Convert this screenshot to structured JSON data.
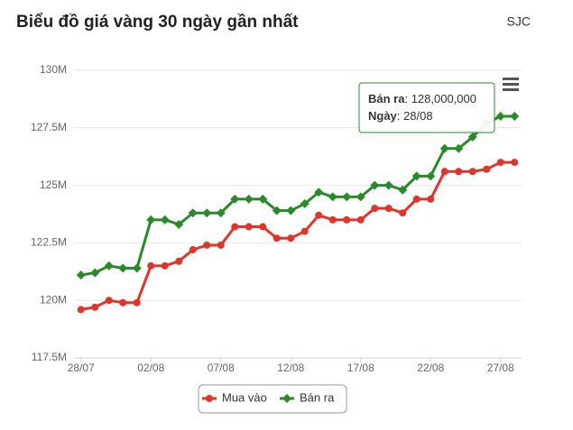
{
  "chart_data": {
    "type": "line",
    "title": "Biểu đồ giá vàng 30 ngày gần nhất",
    "source": "SJC",
    "categories": [
      "28/07",
      null,
      null,
      null,
      null,
      "02/08",
      null,
      null,
      null,
      null,
      "07/08",
      null,
      null,
      null,
      null,
      "12/08",
      null,
      null,
      null,
      null,
      "17/08",
      null,
      null,
      null,
      null,
      "22/08",
      null,
      null,
      null,
      null,
      "27/08",
      null
    ],
    "series": [
      {
        "name": "Mua vào",
        "color": "#e0352b",
        "values": [
          119600000,
          119700000,
          120000000,
          119900000,
          119900000,
          121500000,
          121500000,
          121700000,
          122200000,
          122400000,
          122400000,
          123200000,
          123200000,
          123200000,
          122700000,
          122700000,
          123000000,
          123700000,
          123500000,
          123500000,
          123500000,
          124000000,
          124000000,
          123800000,
          124400000,
          124400000,
          125600000,
          125600000,
          125600000,
          125700000,
          126000000,
          126000000
        ]
      },
      {
        "name": "Bán ra",
        "color": "#2a8a2a",
        "values": [
          121100000,
          121200000,
          121500000,
          121400000,
          121400000,
          123500000,
          123500000,
          123300000,
          123800000,
          123800000,
          123800000,
          124400000,
          124400000,
          124400000,
          123900000,
          123900000,
          124200000,
          124700000,
          124500000,
          124500000,
          124500000,
          125000000,
          125000000,
          124800000,
          125400000,
          125400000,
          126600000,
          126600000,
          127100000,
          127700000,
          128000000,
          128000000
        ]
      }
    ],
    "ylim": [
      117500000,
      130000000
    ],
    "yticks": [
      {
        "value": 117500000,
        "label": "117.5M"
      },
      {
        "value": 120000000,
        "label": "120M"
      },
      {
        "value": 122500000,
        "label": "122.5M"
      },
      {
        "value": 125000000,
        "label": "125M"
      },
      {
        "value": 127500000,
        "label": "127.5M"
      },
      {
        "value": 130000000,
        "label": "130M"
      }
    ],
    "grid": true,
    "legend": "bottom",
    "tooltip": {
      "value_label": "128,000,000",
      "date_label": "Ngày",
      "date": "28/08"
    }
  }
}
